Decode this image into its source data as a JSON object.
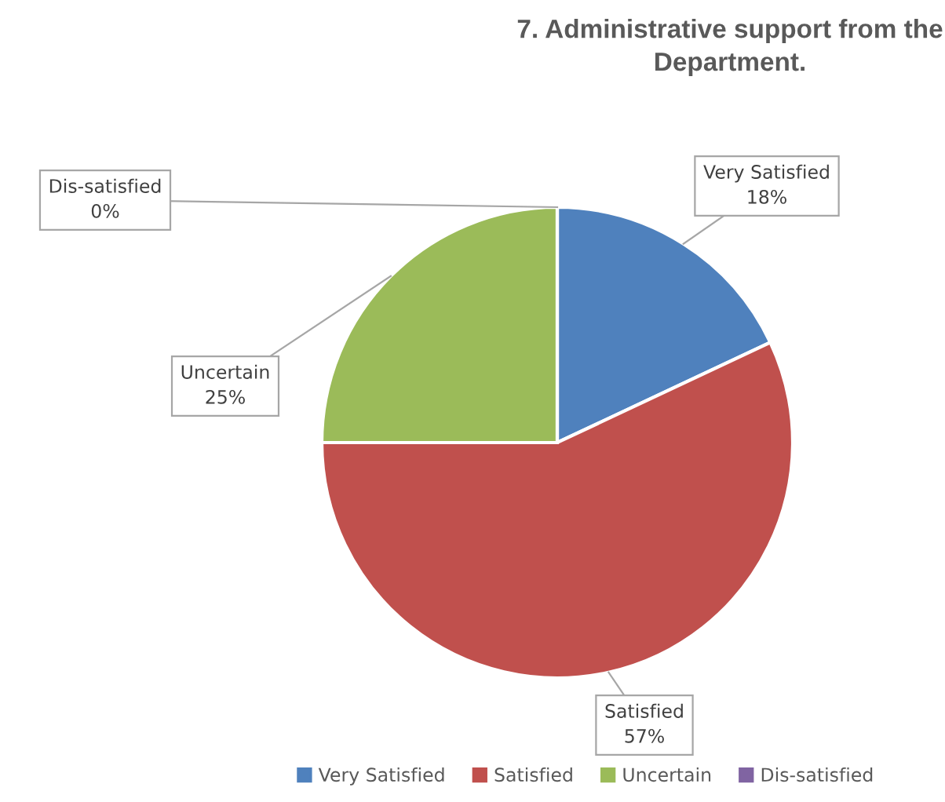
{
  "chart_data": {
    "type": "pie",
    "title": "7. Administrative support from the\nDepartment.",
    "categories": [
      "Very Satisfied",
      "Satisfied",
      "Uncertain",
      "Dis-satisfied"
    ],
    "values": [
      18,
      57,
      25,
      0
    ],
    "value_labels": [
      "18%",
      "57%",
      "25%",
      "0%"
    ],
    "colors": [
      "#4f81bd",
      "#c0504d",
      "#9bbb59",
      "#8064a2"
    ],
    "legend": "bottom"
  }
}
